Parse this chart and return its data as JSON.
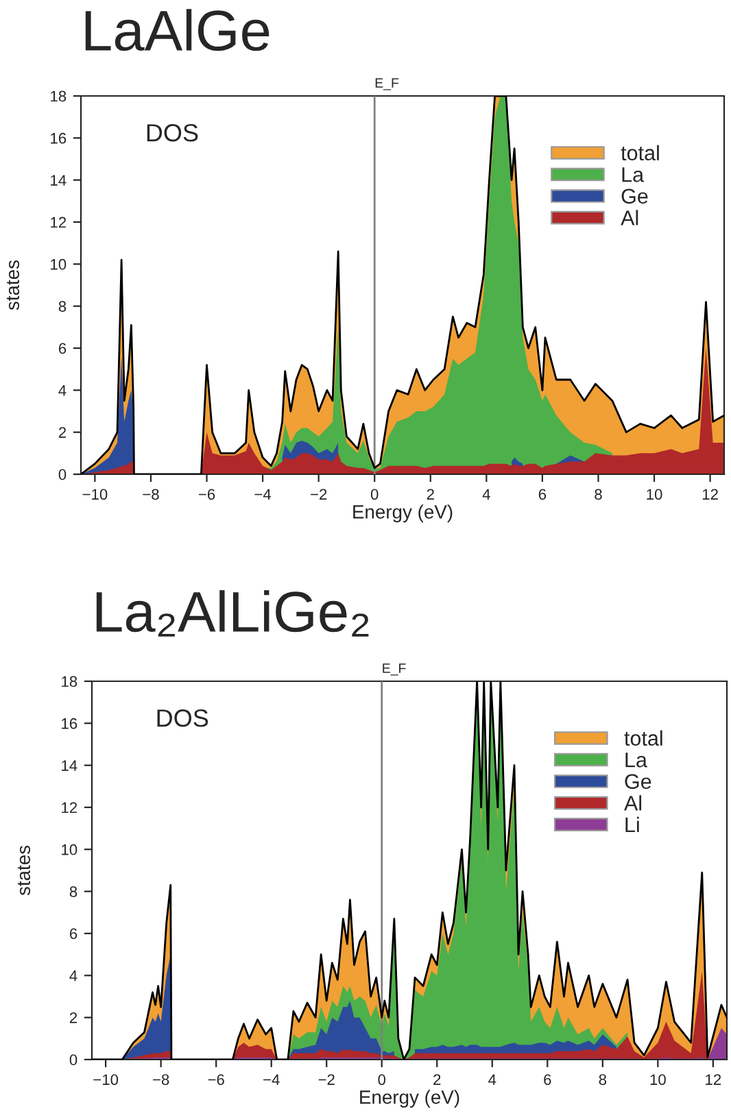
{
  "chart_data": [
    {
      "type": "area",
      "title": "LaAlGe",
      "xlabel": "Energy (eV)",
      "ylabel": "states",
      "annotations": [
        "DOS"
      ],
      "legend": "top right",
      "xlim": [
        -10.5,
        12.5
      ],
      "ylim": [
        0,
        18
      ],
      "xticks": [
        -10,
        -8,
        -6,
        -4,
        -2,
        0,
        2,
        4,
        6,
        8,
        10,
        12
      ],
      "yticks": [
        0,
        2,
        4,
        6,
        8,
        10,
        12,
        14,
        16,
        18
      ],
      "ref_lines": [
        {
          "axis": "x",
          "value": 0,
          "label": "E_F",
          "color": "#808080"
        }
      ],
      "x": [
        -10.5,
        -10.0,
        -9.5,
        -9.2,
        -9.05,
        -8.95,
        -8.8,
        -8.7,
        -8.62,
        -8.6,
        -6.2,
        -6.0,
        -5.8,
        -5.5,
        -5.0,
        -4.6,
        -4.5,
        -4.3,
        -4.0,
        -3.7,
        -3.5,
        -3.3,
        -3.2,
        -3.0,
        -2.8,
        -2.6,
        -2.4,
        -2.2,
        -2.0,
        -1.7,
        -1.5,
        -1.3,
        -1.2,
        -1.0,
        -0.6,
        -0.4,
        -0.2,
        0.0,
        0.2,
        0.5,
        0.8,
        1.2,
        1.5,
        1.8,
        2.1,
        2.5,
        2.8,
        3.0,
        3.3,
        3.6,
        3.9,
        4.1,
        4.3,
        4.5,
        4.7,
        4.9,
        5.0,
        5.15,
        5.3,
        5.5,
        5.75,
        6.0,
        6.1,
        6.5,
        7.0,
        7.5,
        7.9,
        8.5,
        9.0,
        9.5,
        10.0,
        10.6,
        11.0,
        11.6,
        11.85,
        12.1,
        12.5
      ],
      "series": [
        {
          "name": "total",
          "color": "#f0a035",
          "values": [
            0,
            0.5,
            1.2,
            2.0,
            10.2,
            3.5,
            5.0,
            7.1,
            3.2,
            0,
            0,
            5.2,
            2.0,
            1.0,
            1.0,
            1.5,
            4.0,
            2.0,
            0.8,
            0.4,
            1.0,
            2.5,
            4.9,
            3.0,
            4.5,
            5.2,
            5.0,
            4.2,
            3.0,
            4.0,
            3.5,
            10.6,
            4.0,
            1.8,
            1.2,
            2.4,
            1.0,
            0.3,
            0.5,
            3.0,
            4.0,
            3.8,
            5.0,
            4.0,
            4.5,
            5.0,
            7.5,
            6.5,
            7.2,
            7.0,
            9.5,
            14,
            18,
            18,
            18,
            14,
            15.5,
            12,
            7.0,
            6.0,
            7.0,
            4.0,
            6.5,
            4.5,
            4.5,
            3.5,
            4.3,
            3.5,
            2.0,
            2.4,
            2.2,
            2.8,
            2.2,
            2.6,
            8.2,
            2.5,
            2.8
          ]
        },
        {
          "name": "La",
          "color": "#4db04a",
          "values": [
            null,
            null,
            null,
            null,
            null,
            null,
            null,
            null,
            null,
            null,
            null,
            null,
            null,
            null,
            null,
            null,
            null,
            null,
            0.3,
            0.3,
            0.6,
            1.5,
            2.4,
            1.5,
            2.0,
            2.2,
            2.2,
            2.0,
            1.8,
            2.2,
            2.5,
            7.1,
            3.0,
            1.5,
            1.0,
            1.6,
            0.8,
            0.25,
            0.3,
            1.8,
            2.5,
            2.7,
            3.0,
            3.0,
            3.2,
            3.8,
            5.5,
            5.2,
            5.5,
            5.8,
            8.5,
            13,
            17,
            18,
            18,
            13,
            12,
            11,
            6.5,
            5.0,
            4.5,
            3.5,
            3.8,
            2.8,
            2.0,
            1.5,
            1.4,
            1.0,
            null,
            null,
            null,
            null,
            null,
            null,
            null,
            null,
            null
          ]
        },
        {
          "name": "Ge",
          "color": "#2d4b9b",
          "values": [
            0,
            0.3,
            0.8,
            1.5,
            5.6,
            2.5,
            3.5,
            4.0,
            3.0,
            0,
            0,
            null,
            null,
            null,
            null,
            null,
            null,
            null,
            null,
            null,
            null,
            0.8,
            1.4,
            1.0,
            1.5,
            1.6,
            1.5,
            1.3,
            1.0,
            1.2,
            1.0,
            1.5,
            null,
            null,
            null,
            null,
            null,
            null,
            null,
            null,
            null,
            null,
            null,
            null,
            null,
            null,
            null,
            null,
            null,
            null,
            null,
            null,
            null,
            null,
            null,
            0.6,
            0.8,
            0.6,
            0.5,
            null,
            null,
            null,
            null,
            0.5,
            0.9,
            0.6,
            null,
            null,
            null,
            null,
            null,
            null,
            null,
            null,
            null,
            null,
            null
          ]
        },
        {
          "name": "Al",
          "color": "#b0282a",
          "values": [
            0,
            0.1,
            0.2,
            0.3,
            0.4,
            0.4,
            0.5,
            0.6,
            0.6,
            0,
            0,
            2.0,
            1.0,
            0.9,
            0.9,
            1.1,
            1.5,
            1.0,
            0.4,
            0.2,
            0.4,
            0.6,
            0.8,
            0.7,
            0.8,
            1.0,
            1.0,
            0.9,
            0.7,
            0.7,
            0.6,
            1.0,
            0.6,
            0.4,
            0.3,
            0.3,
            0.2,
            0.1,
            0.2,
            0.4,
            0.4,
            0.4,
            0.4,
            0.3,
            0.4,
            0.4,
            0.4,
            0.4,
            0.4,
            0.4,
            0.4,
            0.5,
            0.5,
            0.5,
            0.5,
            0.4,
            0.5,
            0.4,
            0.4,
            0.5,
            0.5,
            0.3,
            0.4,
            0.5,
            0.6,
            0.6,
            1.0,
            0.9,
            0.9,
            1.0,
            1.0,
            1.2,
            1.0,
            1.2,
            6.0,
            1.5,
            1.5
          ]
        }
      ]
    },
    {
      "type": "area",
      "title": "La₂AlLiGe₂",
      "xlabel": "Energy (eV)",
      "ylabel": "states",
      "annotations": [
        "DOS"
      ],
      "legend": "top right",
      "xlim": [
        -10.5,
        12.5
      ],
      "ylim": [
        0,
        18
      ],
      "xticks": [
        -10,
        -8,
        -6,
        -4,
        -2,
        0,
        2,
        4,
        6,
        8,
        10,
        12
      ],
      "yticks": [
        0,
        2,
        4,
        6,
        8,
        10,
        12,
        14,
        16,
        18
      ],
      "ref_lines": [
        {
          "axis": "x",
          "value": 0,
          "label": "E_F",
          "color": "#808080"
        }
      ],
      "x": [
        -10.5,
        -9.4,
        -9.0,
        -8.6,
        -8.3,
        -8.2,
        -8.1,
        -8.0,
        -7.8,
        -7.65,
        -7.62,
        -5.4,
        -5.2,
        -5.0,
        -4.8,
        -4.5,
        -4.2,
        -4.0,
        -3.8,
        -3.4,
        -3.2,
        -3.0,
        -2.7,
        -2.4,
        -2.2,
        -2.0,
        -1.8,
        -1.6,
        -1.4,
        -1.25,
        -1.15,
        -1.0,
        -0.8,
        -0.6,
        -0.4,
        -0.2,
        0.0,
        0.1,
        0.25,
        0.45,
        0.6,
        0.8,
        1.0,
        1.2,
        1.5,
        1.8,
        2.0,
        2.2,
        2.4,
        2.6,
        2.9,
        3.05,
        3.2,
        3.45,
        3.6,
        3.7,
        3.85,
        3.95,
        4.2,
        4.3,
        4.5,
        4.8,
        4.95,
        5.1,
        5.3,
        5.4,
        5.7,
        5.9,
        6.1,
        6.35,
        6.6,
        6.75,
        7.1,
        7.5,
        7.7,
        8.0,
        8.5,
        8.9,
        9.15,
        9.5,
        10.0,
        10.3,
        10.6,
        11.2,
        11.6,
        11.8,
        12.3,
        12.5
      ],
      "series": [
        {
          "name": "total",
          "color": "#f0a035",
          "values": [
            0,
            0,
            0.8,
            1.3,
            3.2,
            2.6,
            3.5,
            2.5,
            6.5,
            8.3,
            0,
            0,
            1.0,
            1.7,
            1.0,
            1.9,
            1.2,
            1.5,
            0,
            0,
            2.3,
            1.8,
            2.7,
            2.0,
            5.0,
            2.8,
            4.6,
            3.8,
            6.7,
            5.5,
            7.6,
            4.5,
            5.6,
            6.1,
            3.0,
            3.9,
            2.0,
            2.8,
            2.0,
            6.7,
            1.0,
            0,
            0.5,
            3.9,
            3.5,
            5.0,
            4.5,
            7.0,
            5.5,
            6.5,
            10.0,
            7.0,
            10.5,
            18,
            12,
            18,
            10,
            18,
            12,
            18,
            9.0,
            14,
            5.0,
            8.0,
            5.0,
            2.5,
            4.0,
            3.0,
            2.5,
            5.6,
            3.0,
            4.6,
            2.5,
            4.0,
            2.5,
            3.6,
            2.0,
            3.8,
            0.8,
            0.2,
            1.5,
            3.7,
            1.8,
            0.8,
            8.9,
            0.1,
            2.6,
            2.0
          ]
        },
        {
          "name": "La",
          "color": "#4db04a",
          "values": [
            null,
            null,
            null,
            null,
            null,
            null,
            null,
            null,
            null,
            null,
            null,
            null,
            null,
            null,
            null,
            null,
            null,
            null,
            0,
            0,
            1.2,
            1.0,
            1.3,
            1.3,
            2.5,
            1.8,
            2.8,
            2.5,
            3.5,
            3.2,
            3.5,
            2.8,
            3.0,
            2.8,
            2.0,
            2.6,
            1.6,
            2.2,
            1.6,
            6.0,
            0.8,
            0,
            0.4,
            3.3,
            3.0,
            4.2,
            4.0,
            6.0,
            5.0,
            6.0,
            9.5,
            6.3,
            10,
            17.5,
            11,
            18,
            9.3,
            18,
            11.3,
            18,
            8.0,
            13,
            4.2,
            7.0,
            4.5,
            1.8,
            2.5,
            1.8,
            1.5,
            2.5,
            1.5,
            2.0,
            1.2,
            1.5,
            1.0,
            1.5,
            0.7,
            1.3,
            null,
            null,
            null,
            null,
            null,
            null,
            null,
            null,
            null,
            null
          ]
        },
        {
          "name": "Ge",
          "color": "#2d4b9b",
          "values": [
            0,
            0,
            0.6,
            1.0,
            2.0,
            1.8,
            2.2,
            1.8,
            4.0,
            5.0,
            0,
            0,
            null,
            null,
            null,
            null,
            null,
            null,
            0,
            0,
            0.5,
            0.5,
            0.6,
            0.7,
            1.5,
            1.2,
            2.0,
            1.8,
            2.5,
            2.5,
            2.8,
            2.0,
            2.0,
            1.5,
            1.0,
            1.0,
            0.4,
            0.4,
            0.3,
            0.4,
            null,
            null,
            null,
            0.5,
            0.5,
            0.6,
            0.6,
            0.7,
            0.6,
            0.6,
            0.7,
            0.6,
            0.7,
            0.7,
            0.6,
            0.6,
            0.6,
            0.6,
            0.6,
            0.6,
            0.7,
            0.8,
            0.7,
            0.7,
            0.7,
            0.7,
            0.8,
            0.8,
            0.7,
            0.9,
            0.8,
            0.9,
            0.7,
            0.9,
            0.7,
            1.2,
            0.6,
            null,
            null,
            null,
            null,
            null,
            null,
            null,
            null,
            null,
            null,
            null
          ]
        },
        {
          "name": "Al",
          "color": "#b0282a",
          "values": [
            0,
            0,
            0.1,
            0.2,
            0.3,
            0.3,
            0.3,
            0.3,
            0.4,
            0.4,
            0,
            0,
            0.6,
            0.8,
            0.6,
            0.7,
            0.5,
            0.5,
            0,
            0,
            0.3,
            0.3,
            0.3,
            0.3,
            0.5,
            0.4,
            0.4,
            0.3,
            0.5,
            0.4,
            0.5,
            0.4,
            0.4,
            0.4,
            0.3,
            0.3,
            0.2,
            0.2,
            0.2,
            0.2,
            0.1,
            0,
            0.1,
            0.3,
            0.3,
            0.3,
            0.3,
            0.3,
            0.3,
            0.3,
            0.3,
            0.3,
            0.3,
            0.3,
            0.3,
            0.3,
            0.3,
            0.3,
            0.3,
            0.3,
            0.3,
            0.3,
            0.3,
            0.3,
            0.3,
            0.3,
            0.3,
            0.3,
            0.3,
            0.4,
            0.4,
            0.4,
            0.4,
            0.5,
            0.4,
            0.7,
            0.5,
            1.1,
            0.4,
            0.1,
            0.8,
            1.8,
            0.9,
            0.3,
            4.2,
            0.05,
            null,
            null
          ]
        },
        {
          "name": "Li",
          "color": "#8e3b95",
          "values": [
            0,
            0,
            0.05,
            0.05,
            0.1,
            0.1,
            0.1,
            0.1,
            0.1,
            0.1,
            0,
            0,
            0.1,
            0.1,
            0.1,
            0.1,
            0.1,
            0.1,
            0,
            0,
            0.05,
            0.05,
            0.05,
            0.05,
            0.1,
            0.1,
            0.1,
            0.1,
            0.1,
            0.1,
            0.1,
            0.1,
            0.1,
            0.1,
            0.1,
            0.1,
            0.1,
            0.1,
            0.05,
            0.05,
            0.05,
            0,
            0.02,
            0.05,
            0.05,
            0.05,
            0.05,
            0.05,
            0.05,
            0.05,
            0.05,
            0.05,
            0.05,
            0.05,
            0.05,
            0.05,
            0.05,
            0.05,
            0.05,
            0.05,
            0.05,
            0.05,
            0.05,
            0.05,
            0.05,
            0.05,
            0.05,
            0.05,
            0.05,
            0.05,
            0.05,
            0.05,
            0.05,
            0.05,
            0.05,
            0.05,
            0.05,
            0.05,
            0.05,
            0.02,
            0.05,
            0.1,
            0.05,
            0.05,
            0.1,
            0,
            1.5,
            1.2
          ]
        }
      ]
    }
  ]
}
